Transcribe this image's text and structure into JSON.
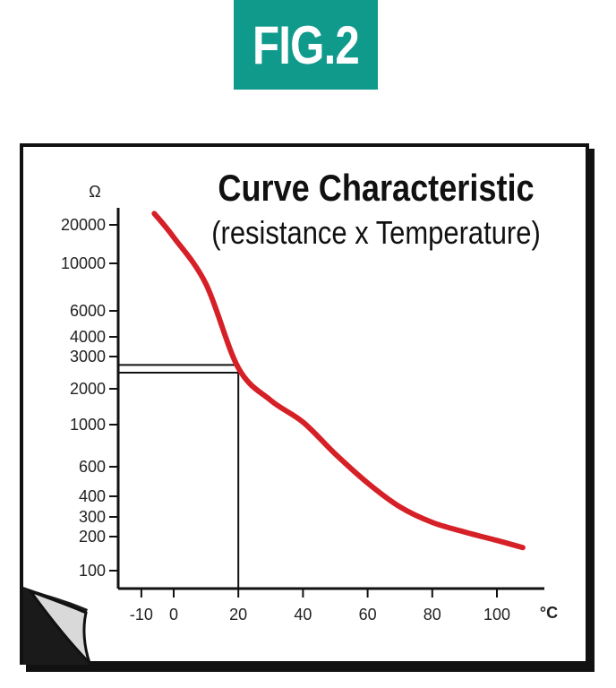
{
  "figure_label": "FIG.2",
  "chart_data": {
    "type": "line",
    "title": "Curve Characteristic",
    "subtitle": "(resistance x Temperature)",
    "ylabel": "Ω",
    "xlabel": "°C",
    "y_scale": "log",
    "x_ticks": [
      -10,
      0,
      20,
      40,
      60,
      80,
      100
    ],
    "x_tick_labels": [
      "-10",
      "0",
      "20",
      "40",
      "60",
      "80",
      "100"
    ],
    "y_ticks": [
      100,
      200,
      300,
      400,
      600,
      1000,
      2000,
      3000,
      4000,
      6000,
      10000,
      20000
    ],
    "y_tick_labels": [
      "100",
      "200",
      "300",
      "400",
      "600",
      "1000",
      "2000",
      "3000",
      "4000",
      "6000",
      "10000",
      "20000"
    ],
    "xlim": [
      -12,
      115
    ],
    "ylim": [
      80,
      30000
    ],
    "grid": false,
    "series": [
      {
        "x": [
          -6,
          0,
          10,
          20,
          30,
          40,
          50,
          60,
          70,
          80,
          90,
          100,
          108
        ],
        "y": [
          25000,
          16000,
          8000,
          2600,
          1600,
          1050,
          700,
          480,
          345,
          268,
          220,
          185,
          160
        ],
        "color": "#d62027"
      }
    ],
    "reference_lines": [
      {
        "x": 20,
        "y_low": 2450,
        "y_high": 2700
      }
    ]
  }
}
